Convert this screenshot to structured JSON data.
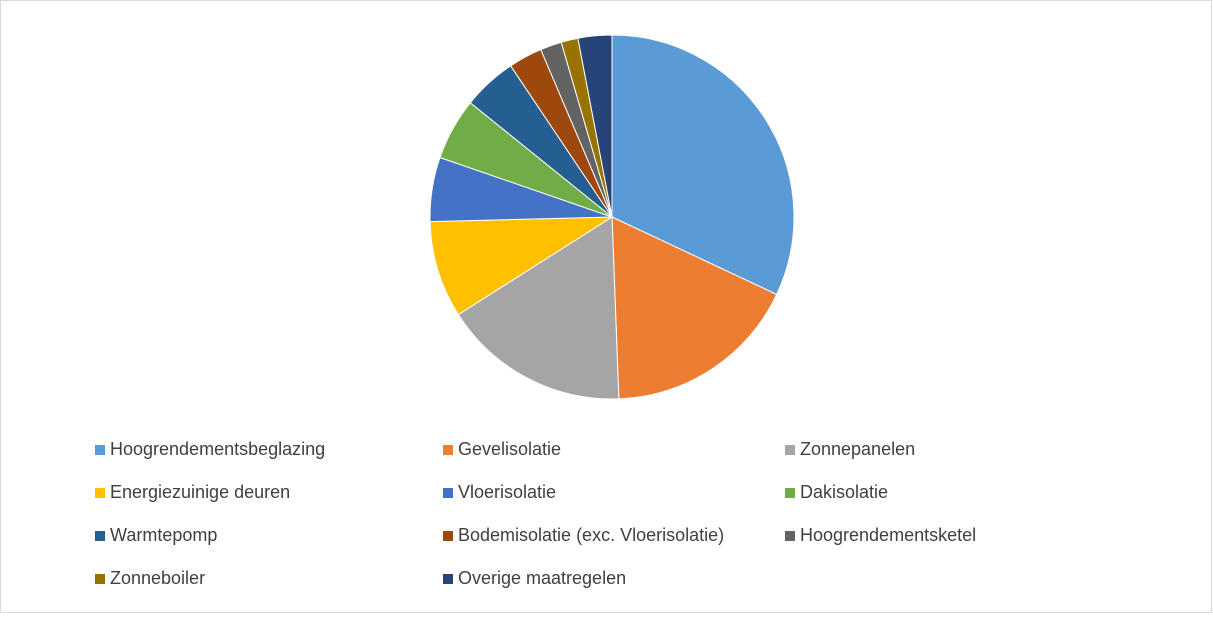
{
  "chart_data": {
    "type": "pie",
    "categories": [
      "Hoogrendementsbeglazing",
      "Gevelisolatie",
      "Zonnepanelen",
      "Energiezuinige deuren",
      "Vloerisolatie",
      "Dakisolatie",
      "Warmtepomp",
      "Bodemisolatie (exc. Vloerisolatie)",
      "Hoogrendementsketel",
      "Zonneboiler",
      "Overige maatregelen"
    ],
    "values": [
      32.0,
      17.4,
      16.6,
      8.6,
      5.7,
      5.5,
      4.8,
      3.0,
      1.9,
      1.5,
      3.0
    ],
    "colors": [
      "#5b9bd5",
      "#ed7d31",
      "#a5a5a5",
      "#ffc000",
      "#4472c4",
      "#70ad47",
      "#255e91",
      "#9e480e",
      "#636363",
      "#997300",
      "#264478"
    ],
    "legend": "bottom"
  }
}
